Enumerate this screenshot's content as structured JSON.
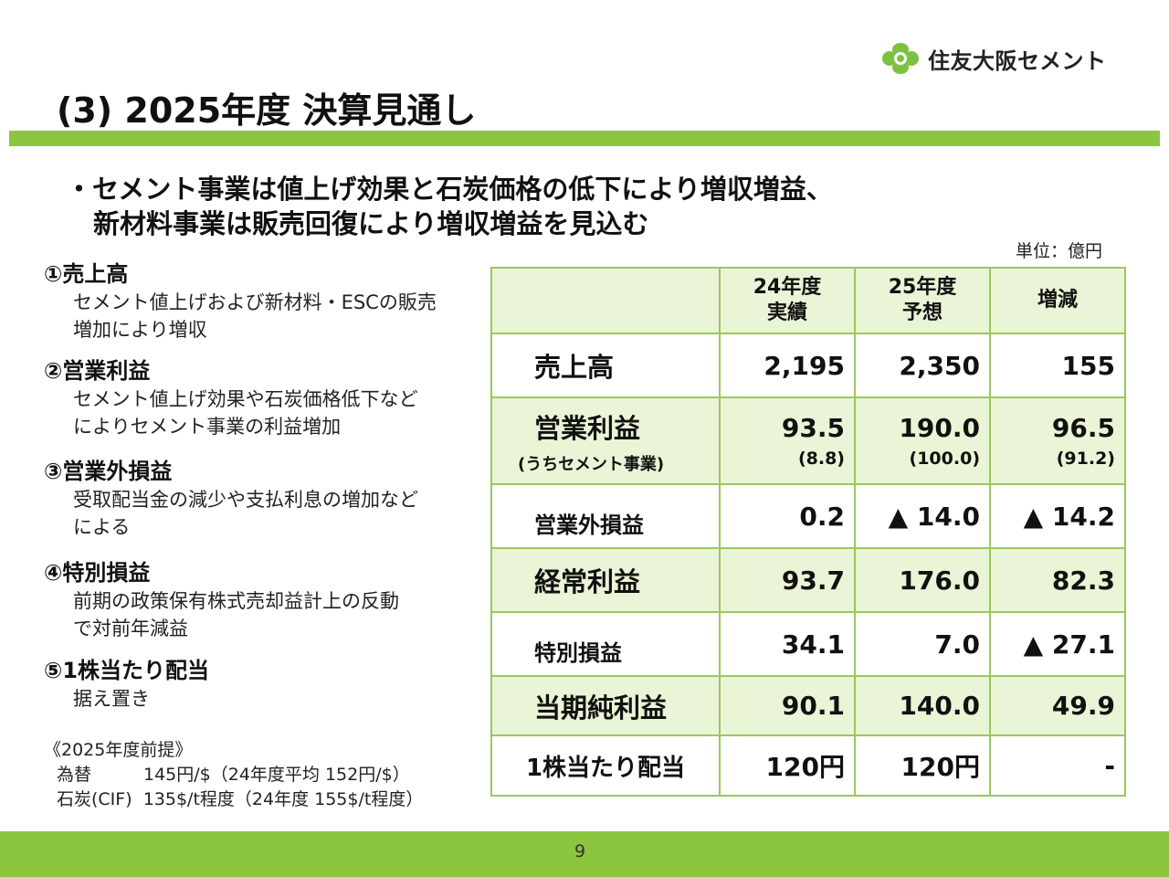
{
  "brand": {
    "company_name": "住友大阪セメント",
    "logo_icon": "flower-logo-icon",
    "accent_color": "#8cc63f",
    "table_fill_color": "#eaf4d6"
  },
  "slide": {
    "title": "(3) 2025年度 決算見通し",
    "lead_line1": "・セメント事業は値上げ効果と石炭価格の低下により増収増益、",
    "lead_line2": "新材料事業は販売回復により増収増益を見込む",
    "unit": "単位：億円",
    "page_number": "9"
  },
  "points": [
    {
      "heading": "①売上高",
      "desc": [
        "セメント値上げおよび新材料・ESCの販売",
        "増加により増収"
      ]
    },
    {
      "heading": "②営業利益",
      "desc": [
        "セメント値上げ効果や石炭価格低下など",
        "によりセメント事業の利益増加"
      ]
    },
    {
      "heading": "③営業外損益",
      "desc": [
        "受取配当金の減少や支払利息の増加など",
        "による"
      ]
    },
    {
      "heading": "④特別損益",
      "desc": [
        "前期の政策保有株式売却益計上の反動",
        "で対前年減益"
      ]
    },
    {
      "heading": "⑤1株当たり配当",
      "desc": [
        "据え置き",
        ""
      ]
    }
  ],
  "premise": {
    "title": "《2025年度前提》",
    "fx": "為替　　　145円/$（24年度平均 152円/$）",
    "coal": "石炭(CIF)  135$/t程度（24年度 155$/t程度）"
  },
  "table": {
    "headers": [
      {
        "line1": "",
        "line2": ""
      },
      {
        "line1": "24年度",
        "line2": "実績"
      },
      {
        "line1": "25年度",
        "line2": "予想"
      },
      {
        "line1": "増減",
        "line2": ""
      }
    ],
    "rows": [
      {
        "label": "売上高",
        "sub": "",
        "values": [
          "2,195",
          "2,350",
          "155"
        ],
        "subvalues": [
          "",
          "",
          ""
        ]
      },
      {
        "label": "営業利益",
        "sub": "(うちセメント事業)",
        "values": [
          "93.5",
          "190.0",
          "96.5"
        ],
        "subvalues": [
          "(8.8)",
          "(100.0)",
          "(91.2)"
        ]
      },
      {
        "label": "営業外損益",
        "sub": "",
        "values": [
          "0.2",
          "▲ 14.0",
          "▲ 14.2"
        ],
        "subvalues": [
          "",
          "",
          ""
        ]
      },
      {
        "label": "経常利益",
        "sub": "",
        "values": [
          "93.7",
          "176.0",
          "82.3"
        ],
        "subvalues": [
          "",
          "",
          ""
        ]
      },
      {
        "label": "特別損益",
        "sub": "",
        "values": [
          "34.1",
          "7.0",
          "▲ 27.1"
        ],
        "subvalues": [
          "",
          "",
          ""
        ]
      },
      {
        "label": "当期純利益",
        "sub": "",
        "values": [
          "90.1",
          "140.0",
          "49.9"
        ],
        "subvalues": [
          "",
          "",
          ""
        ]
      },
      {
        "label": "1株当たり配当",
        "sub": "",
        "values": [
          "120円",
          "120円",
          "-"
        ],
        "subvalues": [
          "",
          "",
          ""
        ]
      }
    ]
  }
}
